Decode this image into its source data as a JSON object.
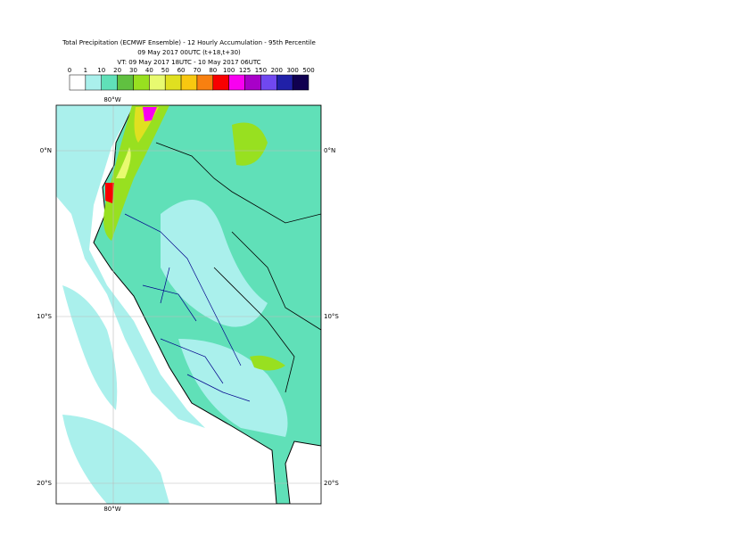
{
  "header": {
    "title": "Total Precipitation (ECMWF Ensemble) - 12 Hourly Accumulation - 95th Percentile",
    "line2": "09 May 2017 00UTC (t+18,t+30)",
    "line3": "VT: 09 May 2017 18UTC - 10 May 2017 06UTC"
  },
  "colorbar": {
    "levels": [
      0,
      1,
      10,
      20,
      30,
      40,
      50,
      60,
      70,
      80,
      100,
      125,
      150,
      200,
      300,
      500
    ],
    "colors": [
      "#ffffff",
      "#aaf0ec",
      "#60e0b8",
      "#60c040",
      "#98e020",
      "#e8fa70",
      "#e0e020",
      "#f8c810",
      "#f88010",
      "#f80000",
      "#f800f0",
      "#a800c8",
      "#7048f0",
      "#2020a8",
      "#100050"
    ]
  },
  "map": {
    "lon_top": "80°W",
    "lon_bottom": "80°W",
    "lat_labels": [
      "0°N",
      "10°S",
      "20°S"
    ]
  }
}
